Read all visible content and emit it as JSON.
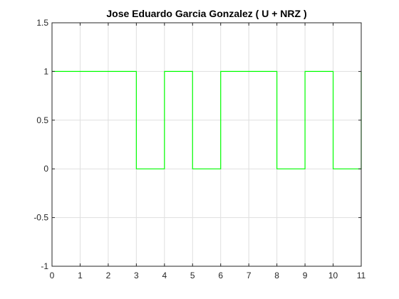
{
  "chart_data": {
    "type": "line",
    "title": "Jose Eduardo Garcia Gonzalez ( U + NRZ )",
    "xlabel": "",
    "ylabel": "",
    "xlim": [
      0,
      11
    ],
    "ylim": [
      -1,
      1.5
    ],
    "x_ticks": [
      0,
      1,
      2,
      3,
      4,
      5,
      6,
      7,
      8,
      9,
      10,
      11
    ],
    "y_ticks": [
      -1,
      -0.5,
      0,
      0.5,
      1,
      1.5
    ],
    "x_tick_labels": [
      "0",
      "1",
      "2",
      "3",
      "4",
      "5",
      "6",
      "7",
      "8",
      "9",
      "10",
      "11"
    ],
    "y_tick_labels": [
      "-1",
      "-0.5",
      "0",
      "0.5",
      "1",
      "1.5"
    ],
    "grid": true,
    "series": [
      {
        "color": "#00ff00",
        "step": true,
        "x": [
          0,
          3,
          3,
          4,
          4,
          5,
          5,
          6,
          6,
          8,
          8,
          9,
          9,
          10,
          10,
          11,
          11
        ],
        "y": [
          1,
          1,
          0,
          0,
          1,
          1,
          0,
          0,
          1,
          1,
          0,
          0,
          1,
          1,
          0,
          0,
          1
        ]
      }
    ]
  },
  "colors": {
    "axes": "#262626",
    "grid": "#dfdfdf",
    "background": "#ffffff"
  }
}
